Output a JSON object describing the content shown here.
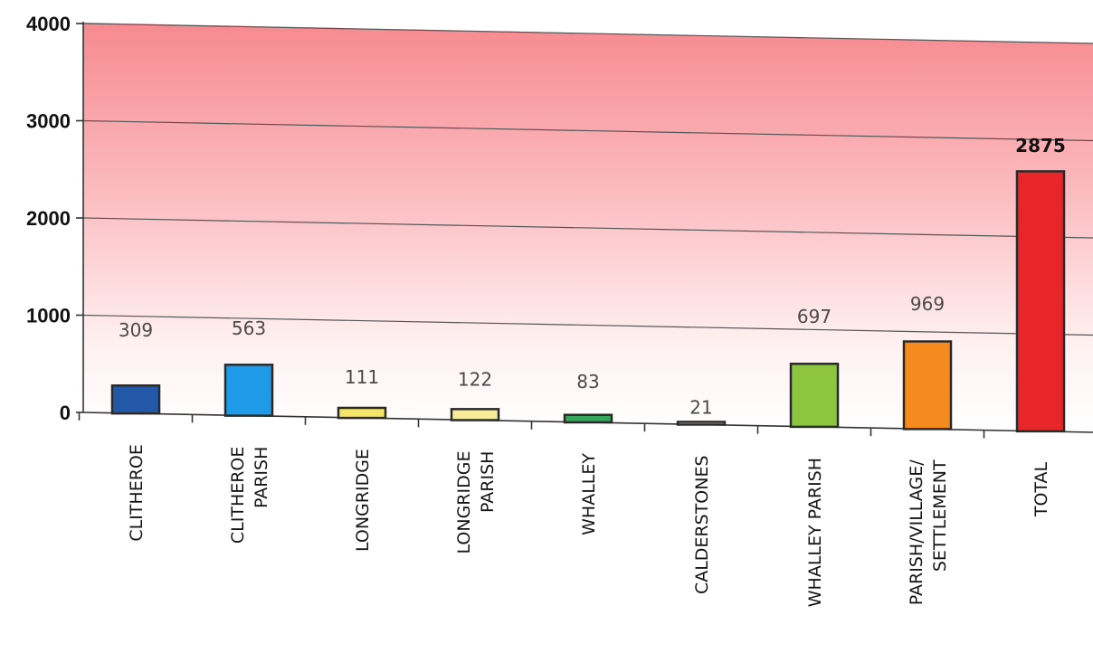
{
  "chart_data": {
    "type": "bar",
    "categories": [
      [
        "CLITHEROE"
      ],
      [
        "CLITHEROE",
        "PARISH"
      ],
      [
        "LONGRIDGE"
      ],
      [
        "LONGRIDGE",
        "PARISH"
      ],
      [
        "WHALLEY"
      ],
      [
        "CALDERSTONES"
      ],
      [
        "WHALLEY PARISH"
      ],
      [
        "PARISH/VILLAGE/",
        "SETTLEMENT"
      ],
      [
        "TOTAL"
      ]
    ],
    "values": [
      309,
      563,
      111,
      122,
      83,
      21,
      697,
      969,
      2875
    ],
    "value_labels": [
      "309",
      "563",
      "111",
      "122",
      "83",
      "21",
      "697",
      "969",
      "2875"
    ],
    "colors": [
      "#2357a8",
      "#1e9ae8",
      "#f4e569",
      "#f6ec9a",
      "#33a85a",
      "#f4f0dc",
      "#8cc63f",
      "#f58a1f",
      "#e8262a"
    ],
    "yticks": [
      "0",
      "1000",
      "2000",
      "3000",
      "4000"
    ],
    "ylim": [
      0,
      4000
    ],
    "grid": true,
    "background": {
      "top": "#f68a90",
      "bottom": "#ffffff"
    },
    "title": "",
    "xlabel": "",
    "ylabel": ""
  }
}
